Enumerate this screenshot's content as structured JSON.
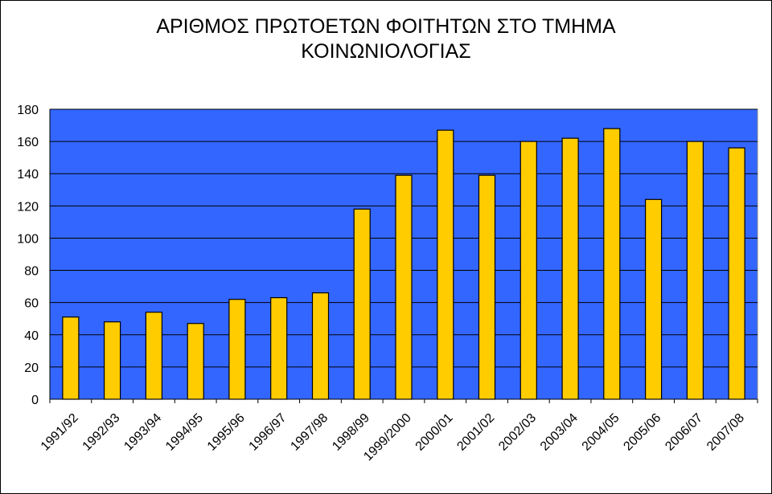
{
  "chart_data": {
    "type": "bar",
    "title_lines": [
      "ΑΡΙΘΜΟΣ ΠΡΩΤΟΕΤΩΝ ΦΟΙΤΗΤΩΝ ΣΤΟ ΤΜΗΜΑ",
      "ΚΟΙΝΩΝΙΟΛΟΓΙΑΣ"
    ],
    "categories": [
      "1991/92",
      "1992/93",
      "1993/94",
      "1994/95",
      "1995/96",
      "1996/97",
      "1997/98",
      "1998/99",
      "1999/2000",
      "2000/01",
      "2001/02",
      "2002/03",
      "2003/04",
      "2004/05",
      "2005/06",
      "2006/07",
      "2007/08"
    ],
    "values": [
      51,
      48,
      54,
      47,
      62,
      63,
      66,
      118,
      139,
      167,
      139,
      160,
      162,
      168,
      124,
      160,
      156
    ],
    "ylim": [
      0,
      180
    ],
    "yticks": [
      0,
      20,
      40,
      60,
      80,
      100,
      120,
      140,
      160,
      180
    ],
    "grid": true,
    "legend": "none",
    "colors": {
      "plot_background": "#3366FF",
      "bar_fill": "#FFCC00",
      "bar_stroke": "#000000",
      "grid": "#000000"
    }
  }
}
